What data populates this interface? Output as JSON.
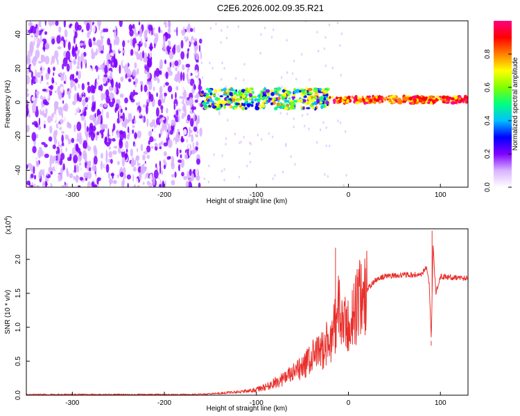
{
  "title": "C2E6.2026.002.09.35.R21",
  "chart_data": [
    {
      "type": "heatmap",
      "xlabel": "Height of straight line (km)",
      "ylabel": "Frequency (Hz)",
      "xlim": [
        -350,
        130
      ],
      "ylim": [
        -50,
        48
      ],
      "xticks": [
        -300,
        -200,
        -100,
        0,
        100
      ],
      "yticks": [
        -40,
        -20,
        0,
        20,
        40
      ],
      "colorbar": {
        "label": "Normalized spectral amplitude",
        "range": [
          0.0,
          1.0
        ],
        "ticks": [
          "0.0",
          "0.2",
          "0.4",
          "0.6",
          "0.8"
        ],
        "colors": [
          "#ffffff",
          "#d9b3ff",
          "#8000ff",
          "#0000ff",
          "#00c0ff",
          "#00ff80",
          "#80ff00",
          "#ffff00",
          "#ff8000",
          "#ff0000",
          "#ff0080"
        ]
      },
      "regions": [
        {
          "x_from": -350,
          "x_to": -160,
          "description": "broadband noise, amplitude 0.0–0.2"
        },
        {
          "x_from": -160,
          "x_to": -20,
          "y_center": 2,
          "y_halfwidth": 6,
          "amplitude_range": [
            0.2,
            0.8
          ]
        },
        {
          "x_from": -20,
          "x_to": 130,
          "y_center": 1.5,
          "y_halfwidth": 2,
          "amplitude_range": [
            0.7,
            1.0
          ]
        }
      ]
    },
    {
      "type": "line",
      "xlabel": "Height of straight line (km)",
      "ylabel": "SNR (10 * v/v)",
      "y_multiplier": "(x10",
      "y_multiplier_exp": "4",
      "y_multiplier_close": ")",
      "xlim": [
        -350,
        130
      ],
      "ylim": [
        0,
        2.45
      ],
      "xticks": [
        -300,
        -200,
        -100,
        0,
        100
      ],
      "yticks": [
        "0.0",
        "0.5",
        "1.0",
        "1.5",
        "2.0"
      ],
      "color": "#e8302c",
      "series": [
        {
          "x": [
            -350,
            -300,
            -250,
            -200,
            -170,
            -150,
            -130,
            -120,
            -110,
            -100,
            -90,
            -80,
            -70,
            -60,
            -50,
            -40,
            -30,
            -20,
            -15,
            -12,
            -10,
            -5,
            0,
            5,
            10,
            20,
            30,
            40,
            50,
            60,
            70,
            80,
            85,
            88,
            90,
            92,
            95,
            100,
            110,
            120,
            130
          ],
          "values": [
            0.01,
            0.01,
            0.01,
            0.01,
            0.01,
            0.02,
            0.04,
            0.05,
            0.06,
            0.08,
            0.12,
            0.18,
            0.25,
            0.32,
            0.4,
            0.55,
            0.65,
            0.8,
            1.0,
            1.3,
            1.2,
            1.0,
            1.0,
            1.15,
            1.35,
            1.55,
            1.7,
            1.75,
            1.76,
            1.77,
            1.77,
            1.78,
            1.9,
            1.6,
            0.8,
            2.2,
            1.5,
            1.75,
            1.74,
            1.73,
            1.72
          ]
        }
      ],
      "spikes": [
        {
          "x": -14,
          "value": 2.17
        },
        {
          "x": 91,
          "value": 2.42
        },
        {
          "x": 90,
          "value": 0.73
        }
      ]
    }
  ]
}
